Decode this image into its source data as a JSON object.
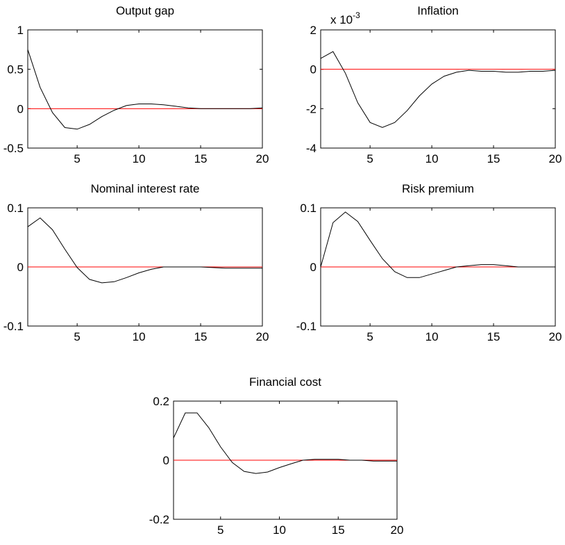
{
  "chart_data": [
    {
      "type": "line",
      "title": "Output gap",
      "xlabel": "",
      "ylabel": "",
      "xlim": [
        1,
        20
      ],
      "ylim": [
        -0.5,
        1
      ],
      "xticks": [
        5,
        10,
        15,
        20
      ],
      "xtick_labels": [
        "5",
        "10",
        "15",
        "20"
      ],
      "yticks": [
        -0.5,
        0,
        0.5,
        1
      ],
      "ytick_labels": [
        "-0.5",
        "0",
        "0.5",
        "1"
      ],
      "exponent_label": "",
      "grid": false,
      "reference_line": {
        "y": 0,
        "color": "#ff0000"
      },
      "series": [
        {
          "color": "#000000",
          "x": [
            1,
            2,
            3,
            4,
            5,
            6,
            7,
            8,
            9,
            10,
            11,
            12,
            13,
            14,
            15,
            16,
            17,
            18,
            19,
            20
          ],
          "values": [
            0.75,
            0.27,
            -0.05,
            -0.24,
            -0.26,
            -0.2,
            -0.1,
            -0.02,
            0.04,
            0.06,
            0.06,
            0.05,
            0.03,
            0.01,
            0.0,
            0.0,
            0.0,
            0.0,
            0.0,
            0.01
          ]
        }
      ]
    },
    {
      "type": "line",
      "title": "Inflation",
      "xlabel": "",
      "ylabel": "",
      "xlim": [
        1,
        20
      ],
      "ylim": [
        -4,
        2
      ],
      "xticks": [
        5,
        10,
        15,
        20
      ],
      "xtick_labels": [
        "5",
        "10",
        "15",
        "20"
      ],
      "yticks": [
        -4,
        -2,
        0,
        2
      ],
      "ytick_labels": [
        "-4",
        "-2",
        "0",
        "2"
      ],
      "exponent_label": "x 10",
      "exponent_sup": "-3",
      "grid": false,
      "reference_line": {
        "y": 0,
        "color": "#ff0000"
      },
      "series": [
        {
          "color": "#000000",
          "x": [
            1,
            2,
            3,
            4,
            5,
            6,
            7,
            8,
            9,
            10,
            11,
            12,
            13,
            14,
            15,
            16,
            17,
            18,
            19,
            20
          ],
          "values": [
            0.55,
            0.9,
            -0.2,
            -1.7,
            -2.7,
            -2.95,
            -2.7,
            -2.1,
            -1.35,
            -0.75,
            -0.35,
            -0.15,
            -0.05,
            -0.1,
            -0.1,
            -0.15,
            -0.15,
            -0.1,
            -0.1,
            -0.05
          ]
        }
      ]
    },
    {
      "type": "line",
      "title": "Nominal interest rate",
      "xlabel": "",
      "ylabel": "",
      "xlim": [
        1,
        20
      ],
      "ylim": [
        -0.1,
        0.1
      ],
      "xticks": [
        5,
        10,
        15,
        20
      ],
      "xtick_labels": [
        "5",
        "10",
        "15",
        "20"
      ],
      "yticks": [
        -0.1,
        0,
        0.1
      ],
      "ytick_labels": [
        "-0.1",
        "0",
        "0.1"
      ],
      "exponent_label": "",
      "grid": false,
      "reference_line": {
        "y": 0,
        "color": "#ff0000"
      },
      "series": [
        {
          "color": "#000000",
          "x": [
            1,
            2,
            3,
            4,
            5,
            6,
            7,
            8,
            9,
            10,
            11,
            12,
            13,
            14,
            15,
            16,
            17,
            18,
            19,
            20
          ],
          "values": [
            0.068,
            0.083,
            0.063,
            0.03,
            -0.001,
            -0.021,
            -0.027,
            -0.025,
            -0.018,
            -0.01,
            -0.004,
            0.0,
            0.0,
            0.0,
            0.0,
            -0.001,
            -0.002,
            -0.002,
            -0.002,
            -0.002
          ]
        }
      ]
    },
    {
      "type": "line",
      "title": "Risk premium",
      "xlabel": "",
      "ylabel": "",
      "xlim": [
        1,
        20
      ],
      "ylim": [
        -0.1,
        0.1
      ],
      "xticks": [
        5,
        10,
        15,
        20
      ],
      "xtick_labels": [
        "5",
        "10",
        "15",
        "20"
      ],
      "yticks": [
        -0.1,
        0,
        0.1
      ],
      "ytick_labels": [
        "-0.1",
        "0",
        "0.1"
      ],
      "exponent_label": "",
      "grid": false,
      "reference_line": {
        "y": 0,
        "color": "#ff0000"
      },
      "series": [
        {
          "color": "#000000",
          "x": [
            1,
            2,
            3,
            4,
            5,
            6,
            7,
            8,
            9,
            10,
            11,
            12,
            13,
            14,
            15,
            16,
            17,
            18,
            19,
            20
          ],
          "values": [
            0.0,
            0.075,
            0.093,
            0.077,
            0.045,
            0.014,
            -0.008,
            -0.018,
            -0.018,
            -0.012,
            -0.006,
            0.0,
            0.002,
            0.004,
            0.004,
            0.002,
            0.0,
            0.0,
            0.0,
            0.0
          ]
        }
      ]
    },
    {
      "type": "line",
      "title": "Financial cost",
      "xlabel": "",
      "ylabel": "",
      "xlim": [
        1,
        20
      ],
      "ylim": [
        -0.2,
        0.2
      ],
      "xticks": [
        5,
        10,
        15,
        20
      ],
      "xtick_labels": [
        "5",
        "10",
        "15",
        "20"
      ],
      "yticks": [
        -0.2,
        0,
        0.2
      ],
      "ytick_labels": [
        "-0.2",
        "0",
        "0.2"
      ],
      "exponent_label": "",
      "grid": false,
      "reference_line": {
        "y": 0,
        "color": "#ff0000"
      },
      "series": [
        {
          "color": "#000000",
          "x": [
            1,
            2,
            3,
            4,
            5,
            6,
            7,
            8,
            9,
            10,
            11,
            12,
            13,
            14,
            15,
            16,
            17,
            18,
            19,
            20
          ],
          "values": [
            0.075,
            0.16,
            0.16,
            0.11,
            0.045,
            -0.008,
            -0.038,
            -0.045,
            -0.04,
            -0.025,
            -0.012,
            0.0,
            0.003,
            0.003,
            0.003,
            0.0,
            0.0,
            -0.003,
            -0.003,
            -0.003
          ]
        }
      ]
    }
  ]
}
